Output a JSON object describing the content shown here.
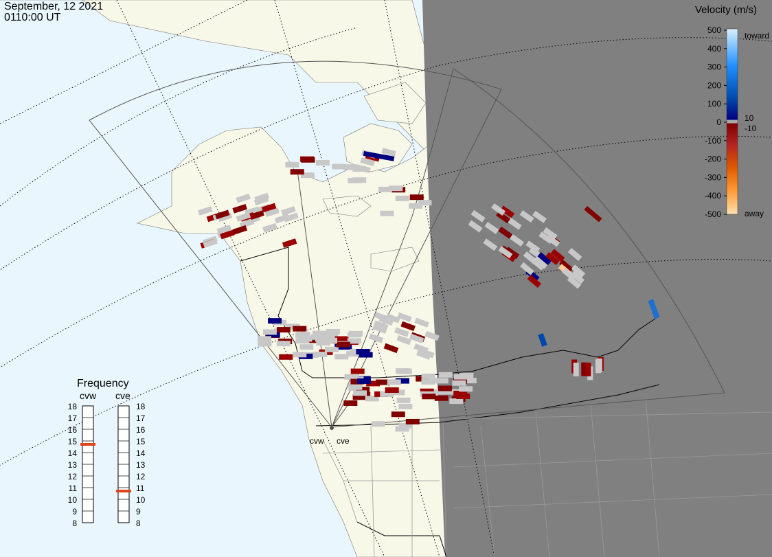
{
  "header": {
    "date": "September, 12 2021",
    "time": "0110:00 UT"
  },
  "colors": {
    "ocean": "#e9f6fd",
    "land": "#f8f8e8",
    "night": "#808080",
    "fov": "#555555",
    "nodata": "#c8c8c8"
  },
  "velocity_scale": {
    "title": "Velocity (m/s)",
    "ticks": [
      "500",
      "400",
      "300",
      "200",
      "100",
      "0",
      "-100",
      "-200",
      "-300",
      "-400",
      "-500"
    ],
    "inner_ticks": [
      "10",
      "-10"
    ],
    "toward_label": "toward",
    "away_label": "away",
    "gradient": [
      "#d9f0ff",
      "#1e90ff",
      "#0047ab",
      "#000080",
      "#800000",
      "#b22222",
      "#e05a00",
      "#ff9933",
      "#ffe0b0"
    ]
  },
  "frequency": {
    "title": "Frequency",
    "radars": [
      {
        "name": "cvw",
        "value": 15,
        "color": "#e0451a"
      },
      {
        "name": "cve",
        "value": 11,
        "color": "#e0451a"
      }
    ],
    "ticks": [
      "18",
      "17",
      "16",
      "15",
      "14",
      "13",
      "12",
      "11",
      "10",
      "9",
      "8"
    ]
  },
  "site_labels": [
    "cvw",
    "cve"
  ]
}
